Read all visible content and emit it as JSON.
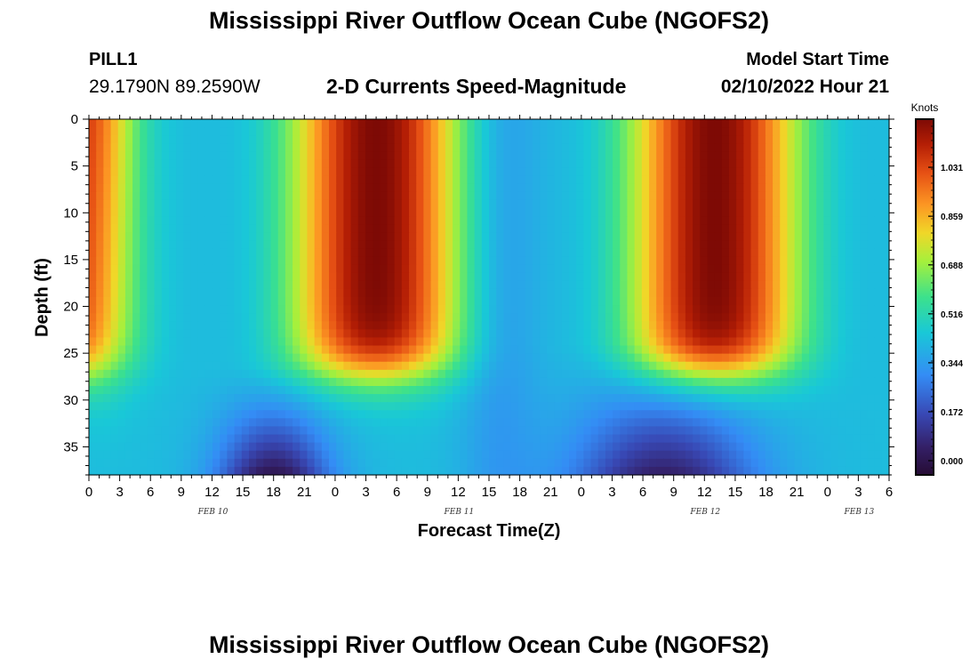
{
  "header": {
    "title": "Mississippi River Outflow Ocean Cube (NGOFS2)",
    "station_id": "PILL1",
    "coordinates": "29.1790N  89.2590W",
    "subtitle": "2-D Currents Speed-Magnitude",
    "model_start_label": "Model Start Time",
    "model_start_value": "02/10/2022 Hour 21"
  },
  "footer": {
    "title": "Mississippi River Outflow Ocean Cube (NGOFS2)"
  },
  "chart_data": {
    "type": "heatmap",
    "title": "2-D Currents Speed-Magnitude",
    "xlabel": "Forecast Time(Z)",
    "ylabel": "Depth (ft)",
    "x_tick_labels": [
      "0",
      "3",
      "6",
      "9",
      "12",
      "15",
      "18",
      "21",
      "0",
      "3",
      "6",
      "9",
      "12",
      "15",
      "18",
      "21",
      "0",
      "3",
      "6",
      "9",
      "12",
      "15",
      "18",
      "21",
      "0",
      "3",
      "6"
    ],
    "date_labels": [
      {
        "label": "FEB 10",
        "tick_index": 4
      },
      {
        "label": "FEB 11",
        "tick_index": 12
      },
      {
        "label": "FEB 12",
        "tick_index": 20
      },
      {
        "label": "FEB 13",
        "tick_index": 25
      }
    ],
    "y_ticks": [
      0,
      5,
      10,
      15,
      20,
      25,
      30,
      35
    ],
    "ylim": [
      38,
      0
    ],
    "xlim_hours": [
      0,
      78
    ],
    "colorbar": {
      "unit": "Knots",
      "tick_values": [
        0.0,
        0.172,
        0.344,
        0.516,
        0.688,
        0.859,
        1.031
      ],
      "tick_labels": [
        "0.000",
        "0.172",
        "0.344",
        "0.516",
        "0.688",
        "0.859",
        "1.031"
      ],
      "range": [
        -0.05,
        1.2
      ]
    },
    "features": [
      {
        "description": "strong surface current",
        "hours": [
          15,
          30
        ],
        "max_depth_ft": 28,
        "peak_knots": 1.15
      },
      {
        "description": "weak deep current",
        "hours": [
          9,
          24
        ],
        "depth_ft": [
          28,
          38
        ],
        "min_knots": 0.0
      },
      {
        "description": "strong surface current",
        "hours": [
          48,
          66
        ],
        "max_depth_ft": 29,
        "peak_knots": 1.2
      },
      {
        "description": "weak deep current",
        "hours": [
          45,
          66
        ],
        "depth_ft": [
          26,
          38
        ],
        "min_knots": 0.02
      }
    ]
  }
}
